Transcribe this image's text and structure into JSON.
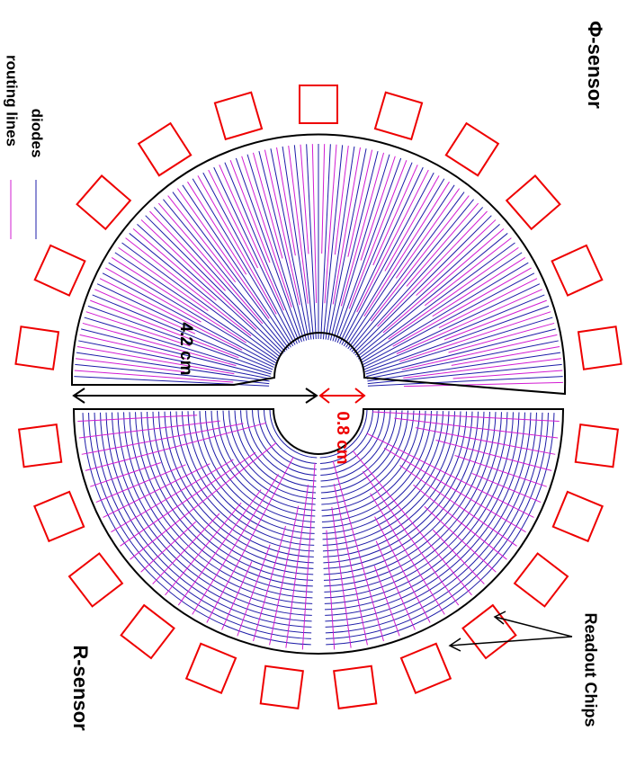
{
  "labels": {
    "phi_sensor": "Φ-sensor",
    "r_sensor": "R-sensor",
    "outer_radius": "4.2 cm",
    "inner_radius": "0.8 cm",
    "readout_chips": "Readout Chips"
  },
  "legend": [
    {
      "label": "diodes",
      "color": "#1c1ca8"
    },
    {
      "label": "routing lines",
      "color": "#d21cd2"
    }
  ]
}
